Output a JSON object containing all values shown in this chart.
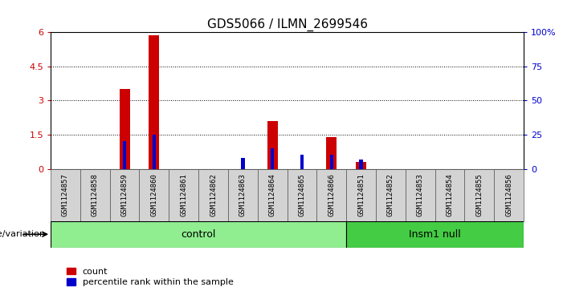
{
  "title": "GDS5066 / ILMN_2699546",
  "samples": [
    "GSM1124857",
    "GSM1124858",
    "GSM1124859",
    "GSM1124860",
    "GSM1124861",
    "GSM1124862",
    "GSM1124863",
    "GSM1124864",
    "GSM1124865",
    "GSM1124866",
    "GSM1124851",
    "GSM1124852",
    "GSM1124853",
    "GSM1124854",
    "GSM1124855",
    "GSM1124856"
  ],
  "count_values": [
    0,
    0,
    3.5,
    5.85,
    0,
    0,
    0,
    2.1,
    0,
    1.4,
    0.3,
    0,
    0,
    0,
    0,
    0
  ],
  "percentile_values": [
    0,
    0,
    0.2,
    0.25,
    0,
    0,
    0.08,
    0.15,
    0.1,
    0.1,
    0.07,
    0,
    0,
    0,
    0,
    0
  ],
  "ylim_left": [
    0,
    6
  ],
  "ylim_right": [
    0,
    100
  ],
  "yticks_left": [
    0,
    1.5,
    3,
    4.5,
    6
  ],
  "yticks_right": [
    0,
    25,
    50,
    75,
    100
  ],
  "ytick_labels_left": [
    "0",
    "1.5",
    "3",
    "4.5",
    "6"
  ],
  "ytick_labels_right": [
    "0",
    "25",
    "50",
    "75",
    "100%"
  ],
  "n_control": 10,
  "n_insm1": 6,
  "control_label": "control",
  "insm1_label": "Insm1 null",
  "genotype_label": "genotype/variation",
  "legend_count": "count",
  "legend_percentile": "percentile rank within the sample",
  "bar_color_count": "#cc0000",
  "bar_color_percentile": "#0000cc",
  "control_bg": "#90ee90",
  "insm1_bg": "#44cc44",
  "sample_bg": "#d3d3d3",
  "count_bar_width": 0.35,
  "percentile_bar_width": 0.12
}
